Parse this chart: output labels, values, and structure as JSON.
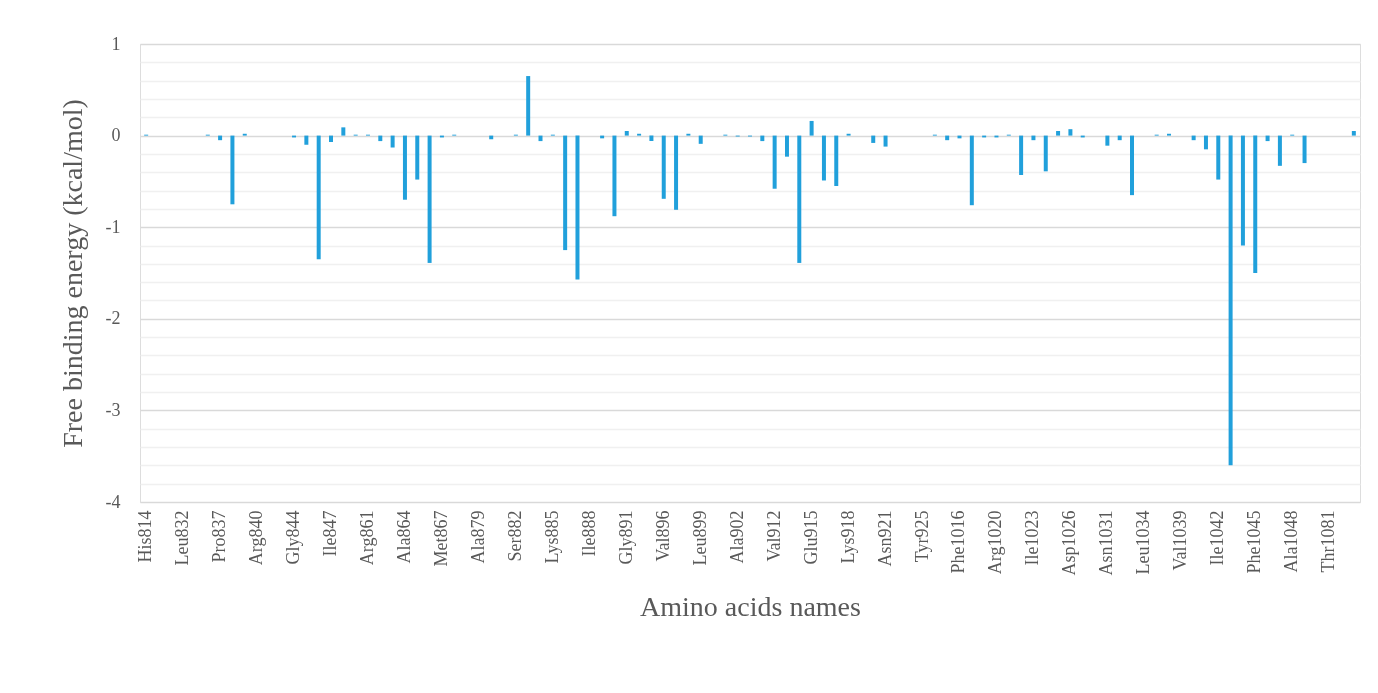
{
  "chart_data": {
    "type": "bar",
    "xlabel": "Amino acids names",
    "ylabel": "Free binding energy (kcal/mol)",
    "categories": [
      "His814",
      null,
      null,
      "Leu832",
      null,
      null,
      "Pro837",
      null,
      null,
      "Arg840",
      null,
      null,
      "Gly844",
      null,
      null,
      "Ile847",
      null,
      null,
      "Arg861",
      null,
      null,
      "Ala864",
      null,
      null,
      "Met867",
      null,
      null,
      "Ala879",
      null,
      null,
      "Ser882",
      null,
      null,
      "Lys885",
      null,
      null,
      "Ile888",
      null,
      null,
      "Gly891",
      null,
      null,
      "Val896",
      null,
      null,
      "Leu899",
      null,
      null,
      "Ala902",
      null,
      null,
      "Val912",
      null,
      null,
      "Glu915",
      null,
      null,
      "Lys918",
      null,
      null,
      "Asn921",
      null,
      null,
      "Tyr925",
      null,
      null,
      "Phe1016",
      null,
      null,
      "Arg1020",
      null,
      null,
      "Ile1023",
      null,
      null,
      "Asp1026",
      null,
      null,
      "Asn1031",
      null,
      null,
      "Leu1034",
      null,
      null,
      "Val1039",
      null,
      null,
      "Ile1042",
      null,
      null,
      "Phe1045",
      null,
      null,
      "Ala1048",
      null,
      null,
      "Thr1081",
      null,
      null
    ],
    "values": [
      0.01,
      0,
      0,
      0,
      0,
      0.01,
      -0.05,
      -0.75,
      0.02,
      0,
      0,
      0,
      -0.02,
      -0.1,
      -1.35,
      -0.07,
      0.09,
      0.01,
      0.01,
      -0.06,
      -0.13,
      -0.7,
      -0.48,
      -1.39,
      -0.02,
      0.01,
      0,
      0,
      -0.04,
      0,
      0.01,
      0.65,
      -0.06,
      0.01,
      -1.25,
      -1.57,
      0,
      -0.03,
      -0.88,
      0.05,
      0.02,
      -0.06,
      -0.69,
      -0.81,
      0.02,
      -0.09,
      0,
      0.01,
      -0.01,
      -0.01,
      -0.06,
      -0.58,
      -0.23,
      -1.39,
      0.16,
      -0.49,
      -0.55,
      0.02,
      0,
      -0.08,
      -0.12,
      0,
      0,
      0,
      0.01,
      -0.05,
      -0.03,
      -0.76,
      -0.02,
      -0.02,
      0.01,
      -0.43,
      -0.05,
      -0.39,
      0.05,
      0.07,
      -0.02,
      0,
      -0.11,
      -0.05,
      -0.65,
      0,
      0.01,
      0.02,
      0,
      -0.05,
      -0.15,
      -0.48,
      -3.6,
      -1.2,
      -1.5,
      -0.06,
      -0.33,
      0.01,
      -0.3,
      0,
      0,
      0,
      0.05
    ],
    "color": "#21a0db",
    "ylim": [
      -4,
      1
    ],
    "yticks": [
      -4,
      {
        "value": -3.8,
        "label": null
      },
      {
        "value": -3.6,
        "label": null
      },
      {
        "value": -3.4,
        "label": null
      },
      {
        "value": -3.2,
        "label": null
      },
      -3,
      {
        "value": -2.8,
        "label": null
      },
      {
        "value": -2.6,
        "label": null
      },
      {
        "value": -2.4,
        "label": null
      },
      {
        "value": -2.2,
        "label": null
      },
      -2,
      {
        "value": -1.8,
        "label": null
      },
      {
        "value": -1.6,
        "label": null
      },
      {
        "value": -1.4,
        "label": null
      },
      {
        "value": -1.2,
        "label": null
      },
      -1,
      {
        "value": -0.8,
        "label": null
      },
      {
        "value": -0.6,
        "label": null
      },
      {
        "value": -0.4,
        "label": null
      },
      {
        "value": -0.2,
        "label": null
      },
      0,
      {
        "value": 0.2,
        "label": null
      },
      {
        "value": 0.4,
        "label": null
      },
      {
        "value": 0.6,
        "label": null
      },
      {
        "value": 0.8,
        "label": null
      },
      1
    ],
    "grid": "y"
  }
}
